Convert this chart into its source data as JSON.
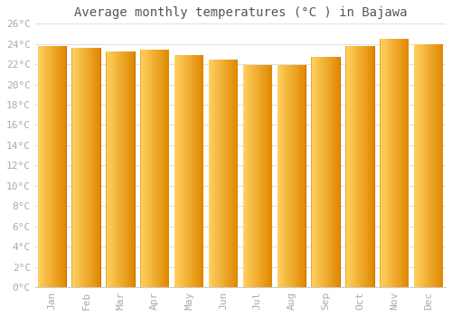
{
  "title": "Average monthly temperatures (°C ) in Bajawa",
  "months": [
    "Jan",
    "Feb",
    "Mar",
    "Apr",
    "May",
    "Jun",
    "Jul",
    "Aug",
    "Sep",
    "Oct",
    "Nov",
    "Dec"
  ],
  "temperatures": [
    23.8,
    23.6,
    23.3,
    23.4,
    22.9,
    22.5,
    21.9,
    21.9,
    22.7,
    23.8,
    24.5,
    24.0
  ],
  "bar_color": "#FFA500",
  "bar_color_left": "#FFD060",
  "bar_color_right": "#E08800",
  "bar_edge_color": "#C87000",
  "background_color": "#ffffff",
  "plot_background": "#ffffff",
  "grid_color": "#e0e0e0",
  "ylim": [
    0,
    26
  ],
  "yticks": [
    0,
    2,
    4,
    6,
    8,
    10,
    12,
    14,
    16,
    18,
    20,
    22,
    24,
    26
  ],
  "ytick_labels": [
    "0°C",
    "2°C",
    "4°C",
    "6°C",
    "8°C",
    "10°C",
    "12°C",
    "14°C",
    "16°C",
    "18°C",
    "20°C",
    "22°C",
    "24°C",
    "26°C"
  ],
  "title_fontsize": 10,
  "tick_fontsize": 8,
  "tick_color": "#aaaaaa",
  "font_family": "monospace",
  "bar_width": 0.85
}
